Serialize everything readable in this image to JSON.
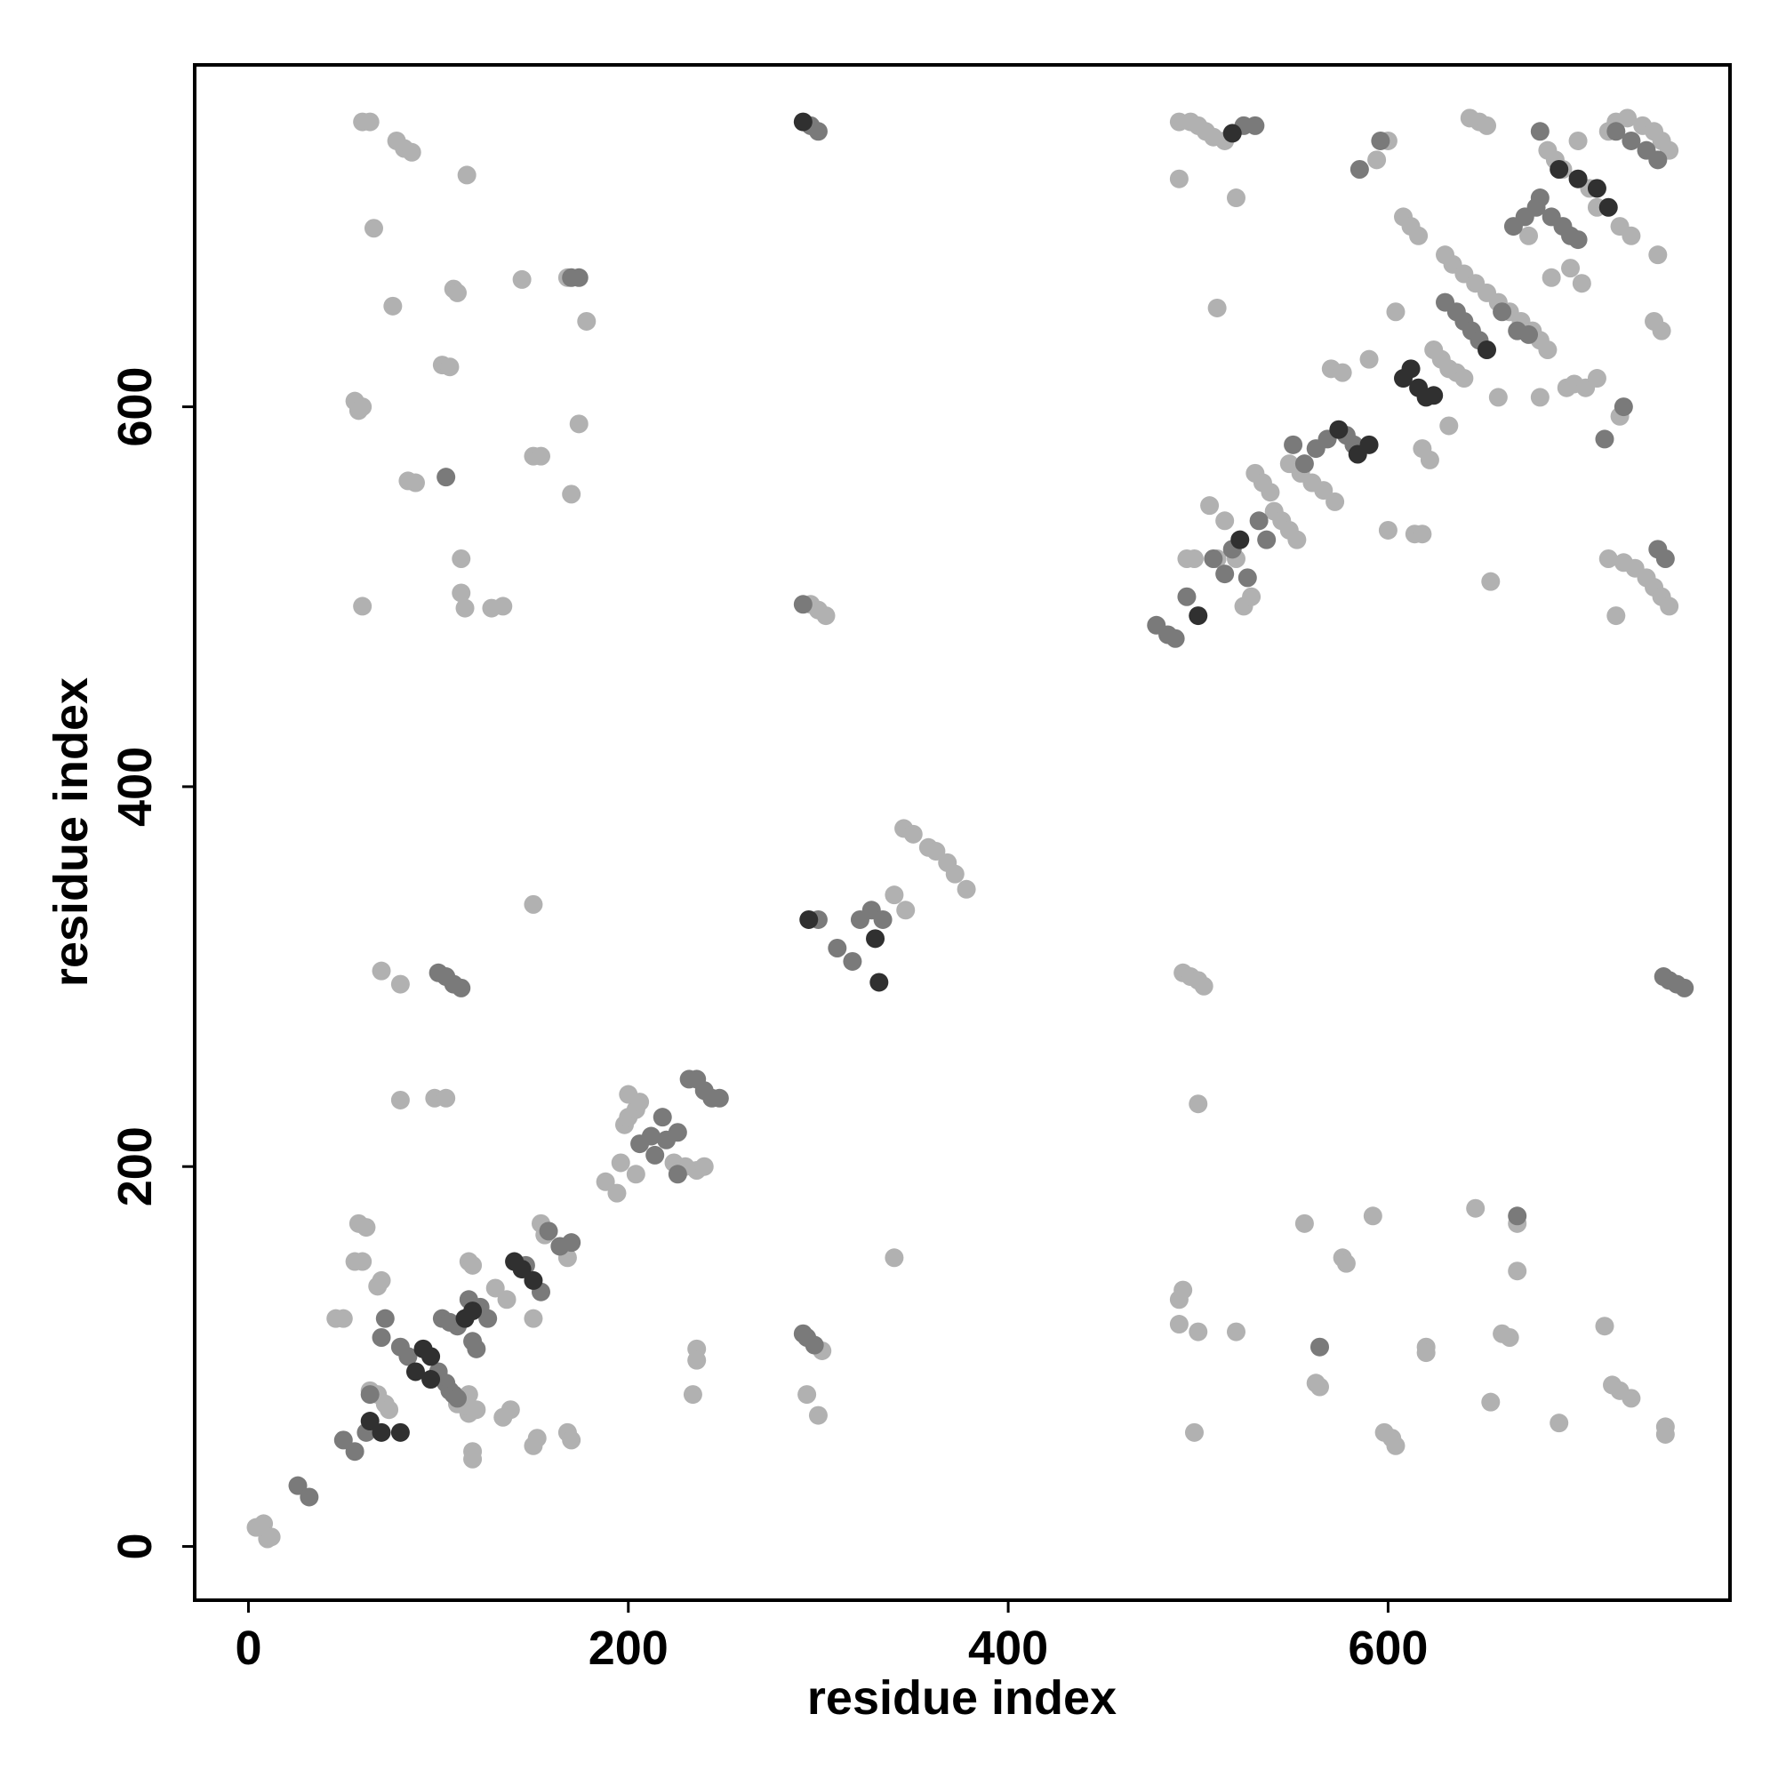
{
  "chart_data": {
    "type": "scatter",
    "x_label": "residue index",
    "y_label": "residue index",
    "xlim": [
      -28.3,
      780
    ],
    "ylim": [
      -28.3,
      780
    ],
    "xticks": [
      0,
      200,
      400,
      600
    ],
    "yticks": [
      0,
      200,
      400,
      600
    ],
    "grid": false,
    "series": [
      {
        "color": "#b1b1b1",
        "x": [
          60,
          64,
          78,
          82,
          86,
          66,
          76,
          115,
          108,
          110,
          144,
          168,
          178,
          56,
          60,
          58,
          102,
          106,
          84,
          88,
          150,
          154,
          174,
          170,
          60,
          112,
          112,
          114,
          128,
          134,
          296,
          300,
          304,
          490,
          496,
          500,
          504,
          508,
          514,
          490,
          520,
          510,
          594,
          600,
          643,
          648,
          652,
          346,
          345,
          350,
          358,
          362,
          368,
          372,
          378,
          340,
          70,
          80,
          150,
          80,
          98,
          104,
          340,
          492,
          496,
          500,
          503,
          500,
          492,
          490,
          490,
          500,
          520,
          556,
          576,
          578,
          592,
          562,
          564,
          598,
          602,
          604,
          498,
          620,
          620,
          646,
          654,
          660,
          664,
          668,
          668,
          690,
          714,
          718,
          722,
          728,
          746,
          746,
          302,
          294,
          300,
          234,
          236,
          236,
          116,
          138,
          134,
          152,
          150,
          168,
          170,
          118,
          118,
          4,
          8,
          10,
          12,
          46,
          50,
          56,
          60,
          58,
          62,
          68,
          70,
          64,
          68,
          72,
          74,
          110,
          114,
          116,
          120,
          116,
          118,
          130,
          136,
          150,
          154,
          156,
          168,
          188,
          194,
          196,
          204,
          198,
          200,
          204,
          200,
          206,
          224,
          230,
          236,
          240,
          494,
          498,
          510,
          506,
          514,
          520,
          524,
          528,
          530,
          534,
          538,
          540,
          544,
          548,
          552,
          548,
          554,
          560,
          566,
          572,
          570,
          576,
          590,
          600,
          614,
          618,
          608,
          612,
          616,
          624,
          628,
          632,
          636,
          640,
          630,
          634,
          640,
          646,
          652,
          658,
          664,
          670,
          676,
          680,
          684,
          674,
          684,
          688,
          692,
          706,
          710,
          722,
          728,
          716,
          720,
          726,
          734,
          740,
          744,
          748,
          700,
          694,
          698,
          704,
          710,
          680,
          716,
          720,
          724,
          730,
          736,
          740,
          744,
          748,
          740,
          744,
          742,
          722,
          696,
          702,
          686,
          658,
          604,
          654,
          632,
          618,
          622
        ],
        "y": [
          750,
          750,
          740,
          736,
          734,
          694,
          653,
          722,
          662,
          660,
          667,
          668,
          645,
          603,
          600,
          598,
          622,
          621,
          561,
          560,
          574,
          574,
          591,
          554,
          495,
          520,
          502,
          494,
          494,
          495,
          496,
          493,
          490,
          750,
          750,
          748,
          745,
          742,
          740,
          720,
          710,
          652,
          730,
          740,
          752,
          750,
          748,
          335,
          378,
          375,
          368,
          366,
          360,
          354,
          346,
          343,
          303,
          296,
          338,
          235,
          236,
          236,
          152,
          302,
          300,
          298,
          295,
          233,
          135,
          130,
          117,
          113,
          113,
          170,
          152,
          149,
          174,
          86,
          84,
          60,
          57,
          53,
          60,
          105,
          102,
          178,
          76,
          112,
          110,
          145,
          170,
          65,
          116,
          85,
          82,
          78,
          63,
          59,
          103,
          80,
          69,
          80,
          104,
          98,
          70,
          72,
          68,
          57,
          53,
          60,
          56,
          50,
          46,
          10,
          12,
          4,
          5,
          120,
          120,
          150,
          150,
          170,
          168,
          137,
          140,
          82,
          80,
          75,
          72,
          75,
          74,
          80,
          72,
          150,
          148,
          136,
          130,
          120,
          170,
          164,
          152,
          192,
          186,
          202,
          196,
          222,
          226,
          230,
          238,
          234,
          202,
          200,
          198,
          200,
          520,
          520,
          520,
          548,
          540,
          520,
          495,
          500,
          565,
          560,
          555,
          545,
          540,
          535,
          530,
          570,
          565,
          560,
          556,
          550,
          620,
          618,
          625,
          535,
          533,
          533,
          700,
          695,
          690,
          630,
          625,
          620,
          618,
          615,
          680,
          675,
          670,
          665,
          660,
          655,
          650,
          645,
          640,
          635,
          630,
          690,
          735,
          730,
          725,
          715,
          705,
          695,
          690,
          745,
          750,
          752,
          748,
          745,
          740,
          735,
          740,
          610,
          612,
          610,
          615,
          605,
          520,
          490,
          518,
          515,
          510,
          505,
          500,
          495,
          645,
          640,
          680,
          595,
          673,
          665,
          668,
          605,
          650,
          508,
          590,
          578,
          572
        ]
      },
      {
        "color": "#7a7a7a",
        "x": [
          170,
          174,
          104,
          296,
          300,
          292,
          524,
          530,
          585,
          596,
          680,
          300,
          310,
          318,
          322,
          328,
          334,
          100,
          104,
          108,
          112,
          745,
          748,
          752,
          756,
          564,
          668,
          292,
          294,
          298,
          26,
          32,
          50,
          56,
          62,
          64,
          70,
          72,
          80,
          84,
          100,
          104,
          106,
          108,
          110,
          102,
          106,
          110,
          116,
          118,
          120,
          122,
          126,
          146,
          154,
          158,
          164,
          170,
          206,
          212,
          214,
          218,
          220,
          226,
          226,
          232,
          236,
          240,
          244,
          248,
          478,
          484,
          488,
          494,
          508,
          514,
          518,
          526,
          532,
          536,
          550,
          556,
          562,
          568,
          578,
          582,
          630,
          636,
          640,
          644,
          648,
          660,
          668,
          674,
          666,
          672,
          678,
          680,
          686,
          692,
          696,
          700,
          720,
          728,
          736,
          742,
          724,
          714,
          742,
          746
        ],
        "y": [
          668,
          668,
          563,
          748,
          745,
          496,
          748,
          748,
          725,
          740,
          745,
          330,
          315,
          308,
          330,
          335,
          330,
          302,
          300,
          296,
          294,
          300,
          298,
          296,
          294,
          105,
          174,
          112,
          110,
          106,
          32,
          26,
          56,
          50,
          60,
          80,
          110,
          120,
          105,
          100,
          92,
          86,
          82,
          80,
          78,
          120,
          118,
          116,
          130,
          108,
          104,
          126,
          120,
          148,
          134,
          166,
          158,
          160,
          212,
          216,
          206,
          226,
          214,
          218,
          196,
          246,
          246,
          240,
          236,
          236,
          485,
          480,
          478,
          500,
          520,
          512,
          525,
          510,
          540,
          530,
          580,
          570,
          578,
          583,
          585,
          580,
          655,
          650,
          645,
          640,
          635,
          650,
          640,
          638,
          695,
          700,
          705,
          710,
          700,
          695,
          690,
          688,
          745,
          740,
          735,
          730,
          600,
          583,
          525,
          520
        ]
      },
      {
        "color": "#303030",
        "x": [
          292,
          518,
          295,
          330,
          332,
          64,
          70,
          80,
          88,
          92,
          96,
          96,
          114,
          118,
          140,
          144,
          150,
          500,
          522,
          574,
          584,
          590,
          608,
          612,
          616,
          620,
          624,
          652,
          690,
          700,
          710,
          716
        ],
        "y": [
          750,
          744,
          330,
          320,
          297,
          66,
          60,
          60,
          92,
          104,
          100,
          88,
          120,
          124,
          150,
          146,
          140,
          490,
          530,
          588,
          575,
          580,
          615,
          620,
          610,
          605,
          606,
          630,
          725,
          720,
          715,
          705
        ]
      }
    ]
  }
}
